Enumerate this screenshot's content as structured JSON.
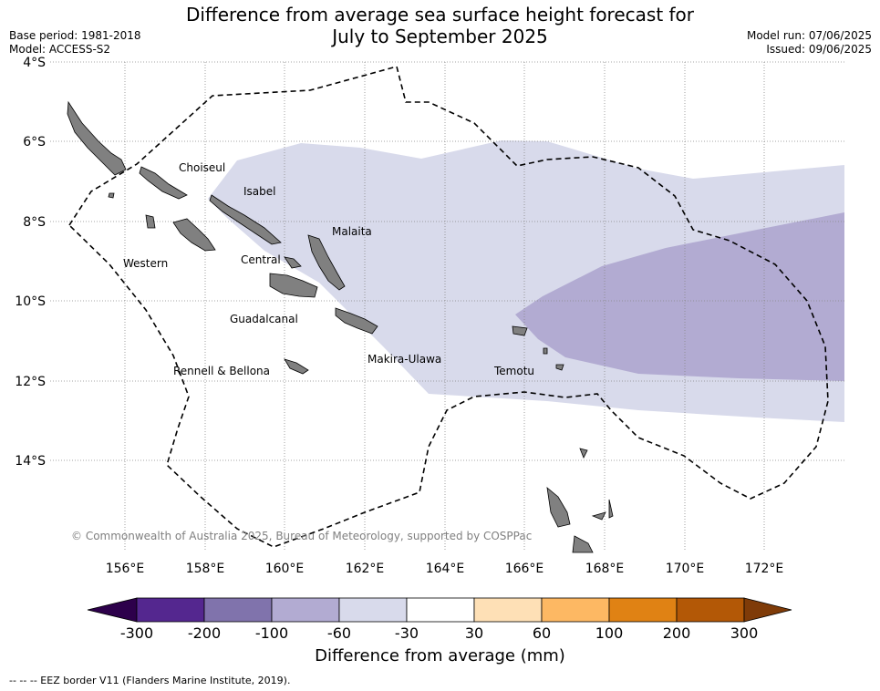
{
  "title_line1": "Difference from average sea surface height forecast for",
  "title_line2": "July to September 2025",
  "base_period": "Base period: 1981-2018",
  "model": "Model: ACCESS-S2",
  "model_run": "Model run: 07/06/2025",
  "issued": "Issued: 09/06/2025",
  "lat_labels": [
    "4°S",
    "6°S",
    "8°S",
    "10°S",
    "12°S",
    "14°S"
  ],
  "lon_labels": [
    "156°E",
    "158°E",
    "160°E",
    "162°E",
    "164°E",
    "166°E",
    "168°E",
    "170°E",
    "172°E"
  ],
  "regions": [
    "Choiseul",
    "Isabel",
    "Malaita",
    "Western",
    "Central",
    "Guadalcanal",
    "Makira-Ulawa",
    "Rennell & Bellona",
    "Temotu"
  ],
  "copyright": "© Commonwealth of Australia 2025, Bureau of Meteorology, supported by COSPPac",
  "colorbar": {
    "title": "Difference from average (mm)",
    "ticks": [
      "-300",
      "-200",
      "-100",
      "-60",
      "-30",
      "30",
      "60",
      "100",
      "200",
      "300"
    ],
    "colors": [
      "#54278f",
      "#8073ac",
      "#b2abd2",
      "#d8daeb",
      "#ffffff",
      "#fee0b6",
      "#fdb863",
      "#e08214",
      "#b35806"
    ],
    "under_color": "#2d004b",
    "over_color": "#7f3b08"
  },
  "footer": "--  --  -- EEZ border V11 (Flanders Marine Institute, 2019).",
  "land_color": "#808080"
}
